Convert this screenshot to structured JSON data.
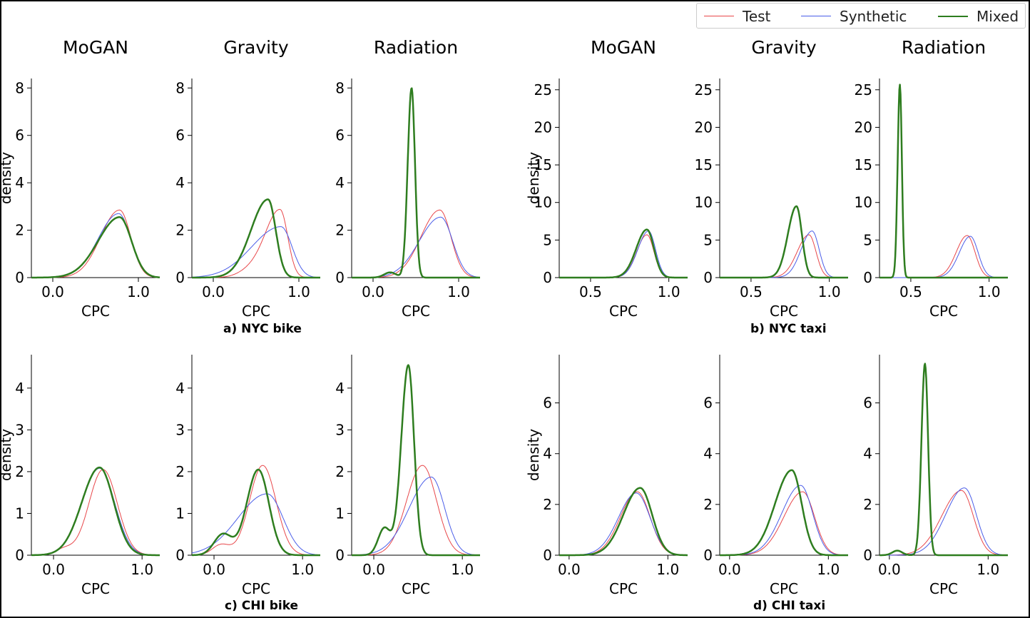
{
  "legend": {
    "items": [
      {
        "label": "Test",
        "color": "#e8474a",
        "width": 1
      },
      {
        "label": "Synthetic",
        "color": "#4a5de8",
        "width": 1
      },
      {
        "label": "Mixed",
        "color": "#2e7d1f",
        "width": 2.5
      }
    ]
  },
  "captions": {
    "a": "a) NYC bike",
    "b": "b) NYC taxi",
    "c": "c) CHI bike",
    "d": "d) CHI taxi"
  },
  "chart_data": [
    {
      "panel": "a) NYC bike",
      "type": "line",
      "xlabel": "CPC",
      "ylabel": "density",
      "xlim": [
        -0.25,
        1.25
      ],
      "ylim": [
        0,
        8.4
      ],
      "xticks": [
        0.0,
        1.0
      ],
      "yticks": [
        0,
        2,
        4,
        6,
        8
      ],
      "subplots": [
        {
          "title": "MoGAN",
          "series": [
            {
              "name": "Test",
              "peaks": [
                {
                  "mu": 0.78,
                  "s_left": 0.22,
                  "s_right": 0.13,
                  "h": 2.85
                }
              ]
            },
            {
              "name": "Synthetic",
              "peaks": [
                {
                  "mu": 0.77,
                  "s_left": 0.24,
                  "s_right": 0.14,
                  "h": 2.7
                }
              ]
            },
            {
              "name": "Mixed",
              "peaks": [
                {
                  "mu": 0.78,
                  "s_left": 0.25,
                  "s_right": 0.14,
                  "h": 2.55
                }
              ]
            }
          ]
        },
        {
          "title": "Gravity",
          "series": [
            {
              "name": "Test",
              "peaks": [
                {
                  "mu": 0.78,
                  "s_left": 0.17,
                  "s_right": 0.09,
                  "h": 2.85
                },
                {
                  "mu": 0.45,
                  "s_left": 0.15,
                  "s_right": 0.15,
                  "h": 0.3
                }
              ]
            },
            {
              "name": "Synthetic",
              "peaks": [
                {
                  "mu": 0.79,
                  "s_left": 0.34,
                  "s_right": 0.13,
                  "h": 2.15
                }
              ]
            },
            {
              "name": "Mixed",
              "peaks": [
                {
                  "mu": 0.64,
                  "s_left": 0.2,
                  "s_right": 0.09,
                  "h": 3.3
                }
              ]
            }
          ]
        },
        {
          "title": "Radiation",
          "series": [
            {
              "name": "Test",
              "peaks": [
                {
                  "mu": 0.78,
                  "s_left": 0.22,
                  "s_right": 0.13,
                  "h": 2.85
                }
              ]
            },
            {
              "name": "Synthetic",
              "peaks": [
                {
                  "mu": 0.79,
                  "s_left": 0.25,
                  "s_right": 0.14,
                  "h": 2.55
                }
              ]
            },
            {
              "name": "Mixed",
              "peaks": [
                {
                  "mu": 0.45,
                  "s_left": 0.045,
                  "s_right": 0.04,
                  "h": 8.0
                },
                {
                  "mu": 0.2,
                  "s_left": 0.07,
                  "s_right": 0.07,
                  "h": 0.22
                }
              ]
            }
          ]
        }
      ]
    },
    {
      "panel": "b) NYC taxi",
      "type": "line",
      "xlabel": "CPC",
      "ylabel": "density",
      "xlim": [
        0.3,
        1.12
      ],
      "ylim": [
        0,
        26.5
      ],
      "xticks": [
        0.5,
        1.0
      ],
      "yticks": [
        0,
        5,
        10,
        15,
        20,
        25
      ],
      "subplots": [
        {
          "title": "MoGAN",
          "series": [
            {
              "name": "Test",
              "peaks": [
                {
                  "mu": 0.86,
                  "s_left": 0.065,
                  "s_right": 0.045,
                  "h": 5.7
                }
              ]
            },
            {
              "name": "Synthetic",
              "peaks": [
                {
                  "mu": 0.87,
                  "s_left": 0.068,
                  "s_right": 0.045,
                  "h": 6.2
                }
              ]
            },
            {
              "name": "Mixed",
              "peaks": [
                {
                  "mu": 0.86,
                  "s_left": 0.068,
                  "s_right": 0.045,
                  "h": 6.4
                }
              ]
            }
          ]
        },
        {
          "title": "Gravity",
          "series": [
            {
              "name": "Test",
              "peaks": [
                {
                  "mu": 0.87,
                  "s_left": 0.075,
                  "s_right": 0.045,
                  "h": 5.7
                }
              ]
            },
            {
              "name": "Synthetic",
              "peaks": [
                {
                  "mu": 0.89,
                  "s_left": 0.07,
                  "s_right": 0.045,
                  "h": 6.2
                }
              ]
            },
            {
              "name": "Mixed",
              "peaks": [
                {
                  "mu": 0.79,
                  "s_left": 0.055,
                  "s_right": 0.035,
                  "h": 9.5
                }
              ]
            }
          ]
        },
        {
          "title": "Radiation",
          "series": [
            {
              "name": "Test",
              "peaks": [
                {
                  "mu": 0.86,
                  "s_left": 0.07,
                  "s_right": 0.05,
                  "h": 5.6
                }
              ]
            },
            {
              "name": "Synthetic",
              "peaks": [
                {
                  "mu": 0.88,
                  "s_left": 0.07,
                  "s_right": 0.05,
                  "h": 5.5
                }
              ]
            },
            {
              "name": "Mixed",
              "peaks": [
                {
                  "mu": 0.43,
                  "s_left": 0.014,
                  "s_right": 0.013,
                  "h": 25.7
                }
              ]
            }
          ]
        }
      ]
    },
    {
      "panel": "c) CHI bike",
      "type": "line",
      "xlabel": "CPC",
      "ylabel": "density",
      "xlim": [
        -0.25,
        1.2
      ],
      "ylim": [
        0,
        4.8
      ],
      "xticks": [
        0.0,
        1.0
      ],
      "yticks": [
        0,
        1,
        2,
        3,
        4
      ],
      "subplots": [
        {
          "title": "MoGAN",
          "series": [
            {
              "name": "Test",
              "peaks": [
                {
                  "mu": 0.56,
                  "s_left": 0.16,
                  "s_right": 0.16,
                  "h": 2.05
                },
                {
                  "mu": 0.12,
                  "s_left": 0.1,
                  "s_right": 0.1,
                  "h": 0.15
                }
              ]
            },
            {
              "name": "Synthetic",
              "peaks": [
                {
                  "mu": 0.52,
                  "s_left": 0.2,
                  "s_right": 0.17,
                  "h": 2.08
                }
              ]
            },
            {
              "name": "Mixed",
              "peaks": [
                {
                  "mu": 0.52,
                  "s_left": 0.2,
                  "s_right": 0.16,
                  "h": 2.1
                }
              ]
            }
          ]
        },
        {
          "title": "Gravity",
          "series": [
            {
              "name": "Test",
              "peaks": [
                {
                  "mu": 0.55,
                  "s_left": 0.15,
                  "s_right": 0.15,
                  "h": 2.15
                },
                {
                  "mu": 0.08,
                  "s_left": 0.1,
                  "s_right": 0.1,
                  "h": 0.25
                }
              ]
            },
            {
              "name": "Synthetic",
              "peaks": [
                {
                  "mu": 0.6,
                  "s_left": 0.33,
                  "s_right": 0.18,
                  "h": 1.47
                }
              ]
            },
            {
              "name": "Mixed",
              "peaks": [
                {
                  "mu": 0.5,
                  "s_left": 0.13,
                  "s_right": 0.12,
                  "h": 2.05
                },
                {
                  "mu": 0.1,
                  "s_left": 0.1,
                  "s_right": 0.1,
                  "h": 0.5
                }
              ]
            }
          ]
        },
        {
          "title": "Radiation",
          "series": [
            {
              "name": "Test",
              "peaks": [
                {
                  "mu": 0.55,
                  "s_left": 0.18,
                  "s_right": 0.16,
                  "h": 2.15
                }
              ]
            },
            {
              "name": "Synthetic",
              "peaks": [
                {
                  "mu": 0.65,
                  "s_left": 0.25,
                  "s_right": 0.15,
                  "h": 1.87
                }
              ]
            },
            {
              "name": "Mixed",
              "peaks": [
                {
                  "mu": 0.39,
                  "s_left": 0.08,
                  "s_right": 0.065,
                  "h": 4.55
                },
                {
                  "mu": 0.12,
                  "s_left": 0.07,
                  "s_right": 0.07,
                  "h": 0.65
                }
              ]
            }
          ]
        }
      ]
    },
    {
      "panel": "d) CHI taxi",
      "type": "line",
      "xlabel": "CPC",
      "ylabel": "density",
      "xlim": [
        -0.1,
        1.2
      ],
      "ylim": [
        0,
        7.9
      ],
      "xticks": [
        0.0,
        1.0
      ],
      "yticks": [
        0,
        2,
        4,
        6
      ],
      "subplots": [
        {
          "title": "MoGAN",
          "series": [
            {
              "name": "Test",
              "peaks": [
                {
                  "mu": 0.69,
                  "s_left": 0.17,
                  "s_right": 0.13,
                  "h": 2.5
                }
              ]
            },
            {
              "name": "Synthetic",
              "peaks": [
                {
                  "mu": 0.68,
                  "s_left": 0.18,
                  "s_right": 0.14,
                  "h": 2.45
                }
              ]
            },
            {
              "name": "Mixed",
              "peaks": [
                {
                  "mu": 0.72,
                  "s_left": 0.17,
                  "s_right": 0.12,
                  "h": 2.65
                }
              ]
            }
          ]
        },
        {
          "title": "Gravity",
          "series": [
            {
              "name": "Test",
              "peaks": [
                {
                  "mu": 0.74,
                  "s_left": 0.19,
                  "s_right": 0.12,
                  "h": 2.5
                }
              ]
            },
            {
              "name": "Synthetic",
              "peaks": [
                {
                  "mu": 0.72,
                  "s_left": 0.19,
                  "s_right": 0.12,
                  "h": 2.75
                }
              ]
            },
            {
              "name": "Mixed",
              "peaks": [
                {
                  "mu": 0.63,
                  "s_left": 0.17,
                  "s_right": 0.1,
                  "h": 3.35
                }
              ]
            }
          ]
        },
        {
          "title": "Radiation",
          "series": [
            {
              "name": "Test",
              "peaks": [
                {
                  "mu": 0.73,
                  "s_left": 0.2,
                  "s_right": 0.12,
                  "h": 2.55
                }
              ]
            },
            {
              "name": "Synthetic",
              "peaks": [
                {
                  "mu": 0.76,
                  "s_left": 0.19,
                  "s_right": 0.12,
                  "h": 2.65
                }
              ]
            },
            {
              "name": "Mixed",
              "peaks": [
                {
                  "mu": 0.36,
                  "s_left": 0.035,
                  "s_right": 0.032,
                  "h": 7.55
                },
                {
                  "mu": 0.08,
                  "s_left": 0.05,
                  "s_right": 0.05,
                  "h": 0.18
                }
              ]
            }
          ]
        }
      ]
    }
  ]
}
